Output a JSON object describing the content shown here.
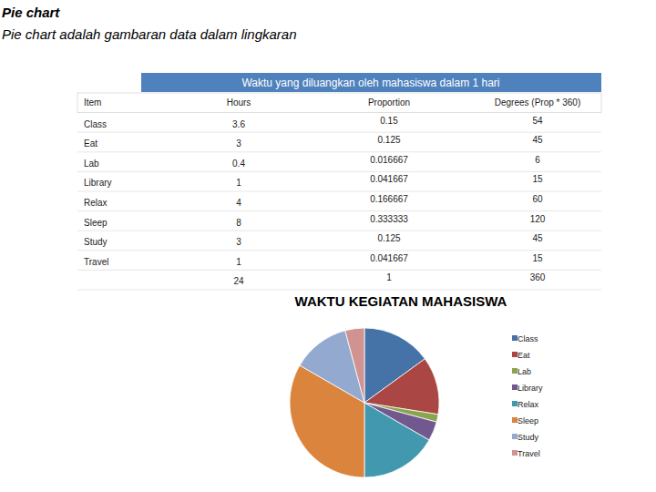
{
  "header": {
    "title": "Pie chart",
    "subtitle": "Pie chart adalah gambaran data dalam lingkaran"
  },
  "table": {
    "title": "Waktu yang diluangkan oleh mahasiswa dalam 1 hari",
    "columns": [
      "Item",
      "Hours",
      "Proportion",
      "Degrees (Prop * 360)"
    ],
    "rows": [
      [
        "Class",
        3.6,
        0.15,
        54
      ],
      [
        "Eat",
        3,
        0.125,
        45
      ],
      [
        "Lab",
        0.4,
        0.016667,
        6
      ],
      [
        "Library",
        1,
        0.041667,
        15
      ],
      [
        "Relax",
        4,
        0.166667,
        60
      ],
      [
        "Sleep",
        8,
        0.333333,
        120
      ],
      [
        "Study",
        3,
        0.125,
        45
      ],
      [
        "Travel",
        1,
        0.041667,
        15
      ],
      [
        null,
        24,
        1,
        360
      ]
    ]
  },
  "chart_data": {
    "type": "pie",
    "title": "WAKTU KEGIATAN MAHASISWA",
    "categories": [
      "Class",
      "Eat",
      "Lab",
      "Library",
      "Relax",
      "Sleep",
      "Study",
      "Travel"
    ],
    "values": [
      3.6,
      3,
      0.4,
      1,
      4,
      8,
      3,
      1
    ],
    "colors": [
      "#4572a7",
      "#aa4643",
      "#89a54e",
      "#71588f",
      "#4198af",
      "#db843d",
      "#93a9cf",
      "#d19392"
    ],
    "legend": "right"
  }
}
